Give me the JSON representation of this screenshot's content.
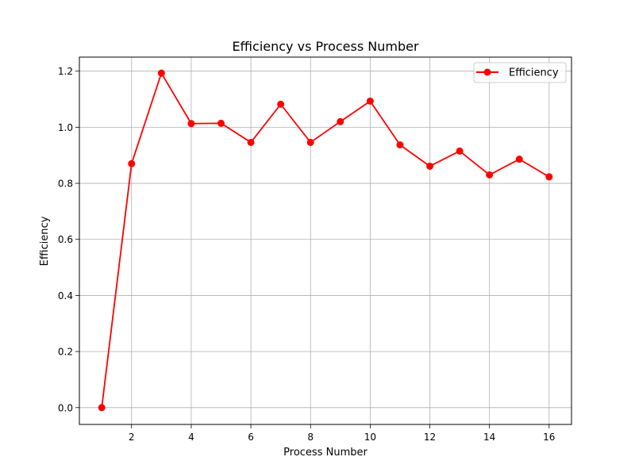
{
  "chart_data": {
    "type": "line",
    "title": "Efficiency vs Process Number",
    "xlabel": "Process Number",
    "ylabel": "Efficiency",
    "xlim": [
      0.25,
      16.75
    ],
    "ylim": [
      -0.06,
      1.25
    ],
    "xticks": [
      2,
      4,
      6,
      8,
      10,
      12,
      14,
      16
    ],
    "yticks": [
      0.0,
      0.2,
      0.4,
      0.6,
      0.8,
      1.0,
      1.2
    ],
    "grid": true,
    "legend_position": "top-right",
    "series": [
      {
        "name": "Efficiency",
        "color": "#ff0000",
        "marker": "circle",
        "x": [
          1,
          2,
          3,
          4,
          5,
          6,
          7,
          8,
          9,
          10,
          11,
          12,
          13,
          14,
          15,
          16
        ],
        "y": [
          0.0,
          0.87,
          1.193,
          1.013,
          1.014,
          0.946,
          1.082,
          0.946,
          1.02,
          1.093,
          0.937,
          0.861,
          0.915,
          0.83,
          0.886,
          0.823
        ]
      }
    ]
  }
}
